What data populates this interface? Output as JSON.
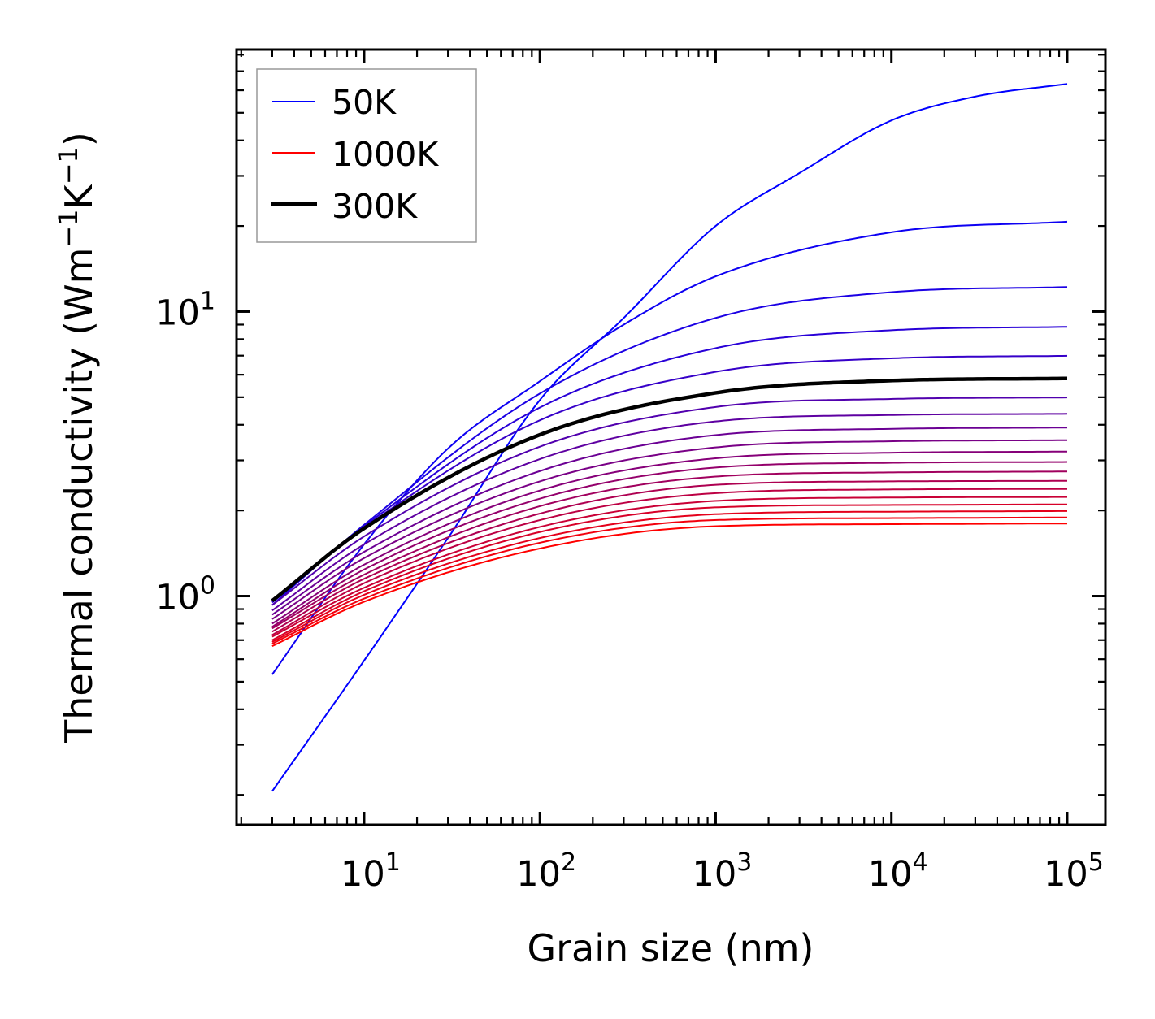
{
  "chart_data": {
    "type": "line",
    "title": "",
    "xlabel": "Grain size (nm)",
    "ylabel_parts": {
      "prefix": "Thermal conductivity (Wm",
      "sup1": "−1",
      "mid": "K",
      "sup2": "−1",
      "suffix": ")"
    },
    "ylabel": "Thermal conductivity (Wm⁻¹K⁻¹)",
    "xscale": "log",
    "yscale": "log",
    "xlim": [
      1.88,
      165000
    ],
    "ylim": [
      0.157,
      83.4
    ],
    "grid": false,
    "x_ticks": [
      {
        "value": 10,
        "base": "10",
        "exp": "1"
      },
      {
        "value": 100,
        "base": "10",
        "exp": "2"
      },
      {
        "value": 1000,
        "base": "10",
        "exp": "3"
      },
      {
        "value": 10000,
        "base": "10",
        "exp": "4"
      },
      {
        "value": 100000,
        "base": "10",
        "exp": "5"
      }
    ],
    "y_ticks": [
      {
        "value": 1,
        "base": "10",
        "exp": "0"
      },
      {
        "value": 10,
        "base": "10",
        "exp": "1"
      }
    ],
    "legend": {
      "placement": "top-left",
      "entries": [
        {
          "label": "50K",
          "color": "#0000ff",
          "style": "thin"
        },
        {
          "label": "1000K",
          "color": "#ff0000",
          "style": "thin"
        },
        {
          "label": "300K",
          "color": "#000000",
          "style": "thick"
        }
      ]
    },
    "colors": {
      "low_T": "#0000ff",
      "high_T": "#ff0000",
      "highlight": "#000000"
    },
    "highlight_temperature": 300,
    "series": [
      {
        "name": "50K",
        "temperature": 50,
        "x": [
          3,
          10,
          30,
          100,
          300,
          1000,
          3000,
          10000,
          30000,
          100000
        ],
        "y": [
          0.206,
          0.593,
          1.6,
          4.89,
          9.5,
          20.0,
          30.7,
          47.0,
          57.0,
          63.2
        ]
      },
      {
        "name": "100K",
        "temperature": 100,
        "x": [
          3,
          10,
          30,
          100,
          300,
          1000,
          10000,
          100000
        ],
        "y": [
          0.53,
          1.52,
          3.3,
          5.69,
          9.0,
          13.3,
          19.0,
          20.7
        ]
      },
      {
        "name": "150K",
        "temperature": 150,
        "x": [
          3,
          10,
          100,
          1000,
          10000,
          100000
        ],
        "y": [
          0.93,
          1.78,
          5.15,
          9.5,
          11.7,
          12.2
        ]
      },
      {
        "name": "200K",
        "temperature": 200,
        "x": [
          3,
          10,
          100,
          1000,
          10000,
          100000
        ],
        "y": [
          0.95,
          1.76,
          4.6,
          7.44,
          8.6,
          8.84
        ]
      },
      {
        "name": "250K",
        "temperature": 250,
        "x": [
          3,
          10,
          100,
          1000,
          10000,
          100000
        ],
        "y": [
          0.96,
          1.74,
          4.15,
          6.14,
          6.85,
          6.99
        ]
      },
      {
        "name": "300K",
        "temperature": 300,
        "x": [
          3,
          10,
          100,
          1000,
          10000,
          100000
        ],
        "y": [
          0.963,
          1.73,
          3.69,
          5.18,
          5.72,
          5.82
        ]
      },
      {
        "name": "350K",
        "temperature": 350,
        "x": [
          3,
          10,
          100,
          1000,
          10000,
          100000
        ],
        "y": [
          0.93,
          1.62,
          3.35,
          4.62,
          4.93,
          4.99
        ]
      },
      {
        "name": "400K",
        "temperature": 400,
        "x": [
          3,
          10,
          100,
          1000,
          10000,
          100000
        ],
        "y": [
          0.89,
          1.52,
          3.03,
          4.11,
          4.33,
          4.37
        ]
      },
      {
        "name": "450K",
        "temperature": 450,
        "x": [
          3,
          10,
          100,
          1000,
          10000,
          100000
        ],
        "y": [
          0.86,
          1.43,
          2.75,
          3.68,
          3.87,
          3.91
        ]
      },
      {
        "name": "500K",
        "temperature": 500,
        "x": [
          3,
          10,
          100,
          1000,
          10000,
          100000
        ],
        "y": [
          0.83,
          1.36,
          2.53,
          3.33,
          3.5,
          3.53
        ]
      },
      {
        "name": "550K",
        "temperature": 550,
        "x": [
          3,
          10,
          100,
          1000,
          10000,
          100000
        ],
        "y": [
          0.8,
          1.29,
          2.35,
          3.05,
          3.19,
          3.22
        ]
      },
      {
        "name": "600K",
        "temperature": 600,
        "x": [
          3,
          10,
          100,
          1000,
          10000,
          100000
        ],
        "y": [
          0.78,
          1.24,
          2.2,
          2.83,
          2.94,
          2.96
        ]
      },
      {
        "name": "650K",
        "temperature": 650,
        "x": [
          3,
          10,
          100,
          1000,
          10000,
          100000
        ],
        "y": [
          0.77,
          1.19,
          2.07,
          2.63,
          2.72,
          2.74
        ]
      },
      {
        "name": "700K",
        "temperature": 700,
        "x": [
          3,
          10,
          100,
          1000,
          10000,
          100000
        ],
        "y": [
          0.75,
          1.15,
          1.95,
          2.46,
          2.53,
          2.54
        ]
      },
      {
        "name": "750K",
        "temperature": 750,
        "x": [
          3,
          10,
          100,
          1000,
          10000,
          100000
        ],
        "y": [
          0.73,
          1.11,
          1.85,
          2.3,
          2.37,
          2.38
        ]
      },
      {
        "name": "800K",
        "temperature": 800,
        "x": [
          3,
          10,
          100,
          1000,
          10000,
          100000
        ],
        "y": [
          0.72,
          1.07,
          1.75,
          2.16,
          2.22,
          2.23
        ]
      },
      {
        "name": "850K",
        "temperature": 850,
        "x": [
          3,
          10,
          100,
          1000,
          10000,
          100000
        ],
        "y": [
          0.7,
          1.04,
          1.68,
          2.05,
          2.09,
          2.1
        ]
      },
      {
        "name": "900K",
        "temperature": 900,
        "x": [
          3,
          10,
          100,
          1000,
          10000,
          100000
        ],
        "y": [
          0.69,
          1.01,
          1.6,
          1.94,
          1.98,
          1.99
        ]
      },
      {
        "name": "950K",
        "temperature": 950,
        "x": [
          3,
          10,
          100,
          1000,
          10000,
          100000
        ],
        "y": [
          0.68,
          0.98,
          1.54,
          1.85,
          1.88,
          1.89
        ]
      },
      {
        "name": "1000K",
        "temperature": 1000,
        "x": [
          3,
          10,
          100,
          1000,
          10000,
          100000
        ],
        "y": [
          0.667,
          0.955,
          1.47,
          1.76,
          1.79,
          1.8
        ]
      }
    ]
  }
}
